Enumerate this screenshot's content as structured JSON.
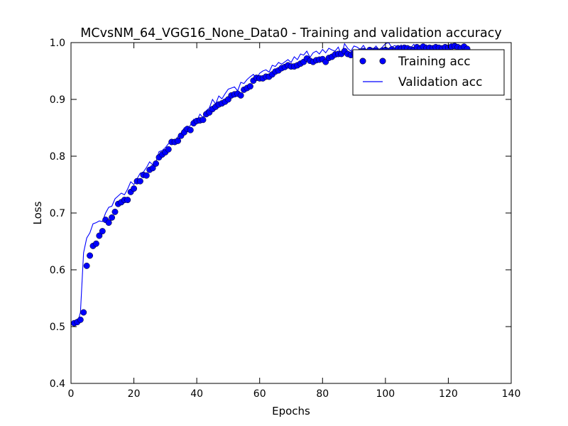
{
  "chart_data": {
    "type": "line",
    "title": "MCvsNM_64_VGG16_None_Data0 - Training and validation accuracy",
    "xlabel": "Epochs",
    "ylabel": "Loss",
    "xlim": [
      0,
      140
    ],
    "ylim": [
      0.4,
      1.0
    ],
    "xticks": [
      "0",
      "20",
      "40",
      "60",
      "80",
      "100",
      "120",
      "140"
    ],
    "yticks": [
      "0.4",
      "0.5",
      "0.6",
      "0.7",
      "0.8",
      "0.9",
      "1.0"
    ],
    "grid": false,
    "legend_position": "top-right",
    "series": [
      {
        "name": "Training acc",
        "style": "markers",
        "color": "#0000ff",
        "x": [
          1,
          2,
          3,
          4,
          5,
          6,
          7,
          8,
          9,
          10,
          11,
          12,
          13,
          14,
          15,
          16,
          17,
          18,
          19,
          20,
          21,
          22,
          23,
          24,
          25,
          26,
          27,
          28,
          29,
          30,
          31,
          32,
          33,
          34,
          35,
          36,
          37,
          38,
          39,
          40,
          41,
          42,
          43,
          44,
          45,
          46,
          47,
          48,
          49,
          50,
          51,
          52,
          53,
          54,
          55,
          56,
          57,
          58,
          59,
          60,
          61,
          62,
          63,
          64,
          65,
          66,
          67,
          68,
          69,
          70,
          71,
          72,
          73,
          74,
          75,
          76,
          77,
          78,
          79,
          80,
          81,
          82,
          83,
          84,
          85,
          86,
          87,
          88,
          89,
          90,
          91,
          92,
          93,
          94,
          95,
          96,
          97,
          98,
          99,
          100,
          101,
          102,
          103,
          104,
          105,
          106,
          107,
          108,
          109,
          110,
          111,
          112,
          113,
          114,
          115,
          116,
          117,
          118,
          119,
          120,
          121,
          122,
          123,
          124,
          125,
          126
        ],
        "y": [
          0.506,
          0.508,
          0.512,
          0.525,
          0.607,
          0.625,
          0.642,
          0.646,
          0.66,
          0.668,
          0.688,
          0.683,
          0.692,
          0.702,
          0.716,
          0.719,
          0.723,
          0.723,
          0.737,
          0.743,
          0.756,
          0.756,
          0.767,
          0.766,
          0.776,
          0.779,
          0.787,
          0.798,
          0.803,
          0.807,
          0.812,
          0.825,
          0.825,
          0.827,
          0.836,
          0.842,
          0.848,
          0.846,
          0.858,
          0.862,
          0.863,
          0.864,
          0.874,
          0.877,
          0.883,
          0.887,
          0.891,
          0.893,
          0.896,
          0.9,
          0.907,
          0.909,
          0.91,
          0.907,
          0.917,
          0.92,
          0.923,
          0.933,
          0.938,
          0.937,
          0.937,
          0.94,
          0.94,
          0.944,
          0.949,
          0.951,
          0.955,
          0.957,
          0.96,
          0.958,
          0.958,
          0.96,
          0.963,
          0.966,
          0.972,
          0.968,
          0.966,
          0.969,
          0.97,
          0.971,
          0.966,
          0.973,
          0.975,
          0.979,
          0.98,
          0.98,
          0.985,
          0.98,
          0.978,
          0.982,
          0.977,
          0.984,
          0.985,
          0.983,
          0.987,
          0.985,
          0.986,
          0.984,
          0.986,
          0.987,
          0.985,
          0.988,
          0.986,
          0.99,
          0.989,
          0.991,
          0.99,
          0.988,
          0.987,
          0.992,
          0.989,
          0.993,
          0.99,
          0.991,
          0.99,
          0.992,
          0.991,
          0.989,
          0.992,
          0.991,
          0.993,
          0.994,
          0.992,
          0.99,
          0.993,
          0.989
        ]
      },
      {
        "name": "Validation acc",
        "style": "line",
        "color": "#0000ff",
        "x": [
          1,
          2,
          3,
          4,
          5,
          6,
          7,
          8,
          9,
          10,
          11,
          12,
          13,
          14,
          15,
          16,
          17,
          18,
          19,
          20,
          21,
          22,
          23,
          24,
          25,
          26,
          27,
          28,
          29,
          30,
          31,
          32,
          33,
          34,
          35,
          36,
          37,
          38,
          39,
          40,
          41,
          42,
          43,
          44,
          45,
          46,
          47,
          48,
          49,
          50,
          51,
          52,
          53,
          54,
          55,
          56,
          57,
          58,
          59,
          60,
          61,
          62,
          63,
          64,
          65,
          66,
          67,
          68,
          69,
          70,
          71,
          72,
          73,
          74,
          75,
          76,
          77,
          78,
          79,
          80,
          81,
          82,
          83,
          84,
          85,
          86,
          87,
          88,
          89,
          90,
          91,
          92,
          93,
          94,
          95,
          96,
          97,
          98,
          99,
          100,
          101,
          102,
          103,
          104,
          105,
          106,
          107,
          108,
          109,
          110,
          111,
          112,
          113,
          114,
          115,
          116,
          117,
          118,
          119,
          120,
          121,
          122,
          123,
          124,
          125,
          126
        ],
        "y": [
          0.503,
          0.505,
          0.525,
          0.63,
          0.656,
          0.665,
          0.681,
          0.683,
          0.686,
          0.685,
          0.7,
          0.71,
          0.712,
          0.725,
          0.73,
          0.735,
          0.732,
          0.742,
          0.755,
          0.75,
          0.76,
          0.77,
          0.772,
          0.78,
          0.79,
          0.785,
          0.79,
          0.808,
          0.81,
          0.815,
          0.822,
          0.83,
          0.828,
          0.834,
          0.84,
          0.85,
          0.846,
          0.855,
          0.865,
          0.862,
          0.874,
          0.868,
          0.88,
          0.885,
          0.9,
          0.892,
          0.906,
          0.901,
          0.91,
          0.918,
          0.92,
          0.922,
          0.915,
          0.93,
          0.928,
          0.935,
          0.94,
          0.944,
          0.937,
          0.946,
          0.95,
          0.952,
          0.948,
          0.96,
          0.958,
          0.965,
          0.962,
          0.966,
          0.97,
          0.965,
          0.975,
          0.97,
          0.98,
          0.978,
          0.985,
          0.974,
          0.982,
          0.985,
          0.98,
          0.988,
          0.982,
          0.99,
          0.987,
          0.985,
          0.992,
          0.978,
          0.998,
          0.99,
          0.985,
          0.994,
          0.992,
          0.988,
          0.995,
          0.986,
          0.99,
          0.988,
          0.994,
          0.987,
          0.992,
          0.998,
          1.0,
          0.992,
          0.995,
          0.99,
          0.996,
          0.988,
          0.994,
          0.99,
          0.997,
          0.992,
          0.995,
          0.993,
          0.996,
          0.99,
          0.994,
          0.997,
          0.992,
          0.995,
          0.99,
          0.996,
          0.993,
          0.998,
          0.992,
          0.995,
          0.994,
          0.99
        ]
      }
    ]
  }
}
